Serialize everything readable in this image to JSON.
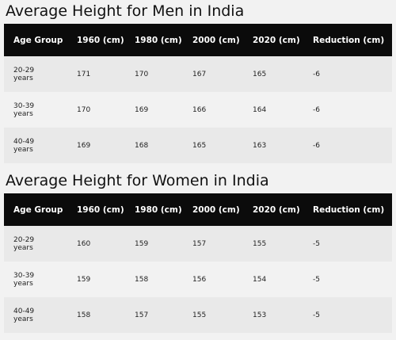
{
  "headers": [
    "Age Group",
    "1960 (cm)",
    "1980 (cm)",
    "2000 (cm)",
    "2020 (cm)",
    "Reduction (cm)"
  ],
  "men": {
    "title": "Average Height for Men in India",
    "rows": [
      {
        "age_line1": "20-29",
        "age_line2": "years",
        "v1960": "171",
        "v1980": "170",
        "v2000": "167",
        "v2020": "165",
        "reduction": "-6"
      },
      {
        "age_line1": "30-39",
        "age_line2": "years",
        "v1960": "170",
        "v1980": "169",
        "v2000": "166",
        "v2020": "164",
        "reduction": "-6"
      },
      {
        "age_line1": "40-49",
        "age_line2": "years",
        "v1960": "169",
        "v1980": "168",
        "v2000": "165",
        "v2020": "163",
        "reduction": "-6"
      }
    ]
  },
  "women": {
    "title": "Average Height for Women in India",
    "rows": [
      {
        "age_line1": "20-29",
        "age_line2": "years",
        "v1960": "160",
        "v1980": "159",
        "v2000": "157",
        "v2020": "155",
        "reduction": "-5"
      },
      {
        "age_line1": "30-39",
        "age_line2": "years",
        "v1960": "159",
        "v1980": "158",
        "v2000": "156",
        "v2020": "154",
        "reduction": "-5"
      },
      {
        "age_line1": "40-49",
        "age_line2": "years",
        "v1960": "158",
        "v1980": "157",
        "v2000": "155",
        "v2020": "153",
        "reduction": "-5"
      }
    ]
  }
}
